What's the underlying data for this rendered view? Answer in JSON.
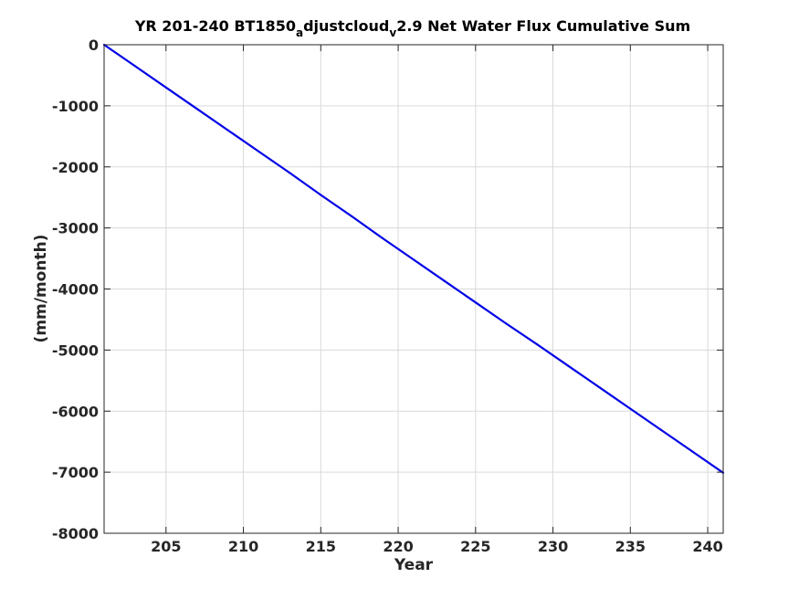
{
  "colors": {
    "series": "#0000e6",
    "axis": "#262626",
    "grid": "#d9d9d9"
  },
  "chart_data": {
    "type": "line",
    "title_parts": {
      "prefix": "YR 201-240 BT1850",
      "sub_a": "a",
      "middle": "djustcloud",
      "sub_v": "v",
      "suffix": "2.9 Net Water Flux Cumulative Sum"
    },
    "xlabel": "Year",
    "ylabel": "(mm/month)",
    "xlim": [
      201,
      241
    ],
    "ylim": [
      -8000,
      0
    ],
    "xticks": [
      205,
      210,
      215,
      220,
      225,
      230,
      235,
      240
    ],
    "yticks": [
      0,
      -1000,
      -2000,
      -3000,
      -4000,
      -5000,
      -6000,
      -7000,
      -8000
    ],
    "grid": true,
    "series": [
      {
        "x": [
          201,
          203,
          205,
          207,
          209,
          211,
          213,
          215,
          217,
          219,
          221,
          223,
          225,
          227,
          229,
          231,
          233,
          235,
          237,
          239,
          241
        ],
        "values": [
          0,
          -350,
          -700,
          -1050,
          -1400,
          -1750,
          -2100,
          -2460,
          -2810,
          -3170,
          -3520,
          -3870,
          -4220,
          -4570,
          -4910,
          -5260,
          -5610,
          -5960,
          -6310,
          -6660,
          -7010
        ]
      }
    ]
  }
}
